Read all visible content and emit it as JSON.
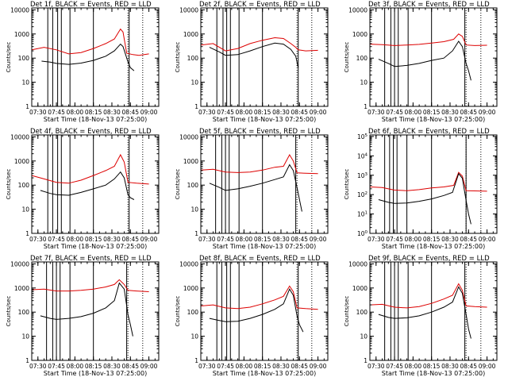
{
  "colors": {
    "events": "#000000",
    "lld": "#dd0000",
    "axes": "#000000",
    "background": "#ffffff"
  },
  "chart_data": [
    {
      "type": "line",
      "title": "Det 1f, BLACK = Events, RED = LLD",
      "xlabel": "Start Time (18-Nov-13 07:25:00)",
      "ylabel": "Counts/sec",
      "xlim": [
        "07:25",
        "09:08"
      ],
      "ylim": [
        1,
        12000
      ],
      "yscale": "log",
      "ytick_format": "plain",
      "x_ticks": [
        "07:30",
        "07:45",
        "08:00",
        "08:15",
        "08:30",
        "08:45",
        "09:00"
      ],
      "y_ticks": [
        "1",
        "10",
        "100",
        "1000",
        "10000"
      ],
      "marker_lines": [
        "07:38",
        "07:42",
        "07:46",
        "07:49",
        "07:56",
        "08:15",
        "08:44"
      ],
      "dotted_lines": [
        "08:43",
        "08:55"
      ],
      "series": [
        {
          "name": "LLD",
          "color": "#dd0000",
          "x": [
            "07:25",
            "07:35",
            "07:45",
            "07:55",
            "08:05",
            "08:15",
            "08:25",
            "08:32",
            "08:37",
            "08:39",
            "08:42",
            "08:47",
            "08:52",
            "09:00"
          ],
          "values": [
            220,
            280,
            220,
            150,
            170,
            250,
            400,
            620,
            1600,
            1200,
            160,
            140,
            130,
            150
          ]
        },
        {
          "name": "Events",
          "color": "#000000",
          "x": [
            "07:33",
            "07:40",
            "07:45",
            "07:55",
            "08:05",
            "08:15",
            "08:25",
            "08:32",
            "08:37",
            "08:39",
            "08:43",
            "08:45",
            "08:48"
          ],
          "values": [
            75,
            68,
            60,
            55,
            62,
            80,
            120,
            200,
            380,
            300,
            70,
            40,
            30
          ]
        }
      ]
    },
    {
      "type": "line",
      "title": "Det 2f, BLACK = Events, RED = LLD",
      "xlabel": "Start Time (18-Nov-13 07:25:00)",
      "ylabel": "Counts/sec",
      "xlim": [
        "07:25",
        "09:08"
      ],
      "ylim": [
        1,
        12000
      ],
      "yscale": "log",
      "ytick_format": "plain",
      "x_ticks": [
        "07:30",
        "07:45",
        "08:00",
        "08:15",
        "08:30",
        "08:45",
        "09:00"
      ],
      "y_ticks": [
        "1",
        "10",
        "100",
        "1000",
        "10000"
      ],
      "marker_lines": [
        "07:38",
        "07:43",
        "07:46",
        "07:49",
        "07:56",
        "08:15",
        "08:44"
      ],
      "dotted_lines": [
        "08:43",
        "08:55"
      ],
      "series": [
        {
          "name": "LLD",
          "color": "#dd0000",
          "x": [
            "07:25",
            "07:35",
            "07:45",
            "07:55",
            "08:05",
            "08:15",
            "08:25",
            "08:32",
            "08:38",
            "08:42",
            "08:44",
            "08:50",
            "09:00"
          ],
          "values": [
            350,
            400,
            200,
            250,
            400,
            550,
            700,
            650,
            400,
            280,
            220,
            200,
            210
          ]
        },
        {
          "name": "Events",
          "color": "#000000",
          "x": [
            "07:32",
            "07:40",
            "07:45",
            "07:55",
            "08:05",
            "08:15",
            "08:25",
            "08:32",
            "08:38",
            "08:42",
            "08:44"
          ],
          "values": [
            280,
            180,
            130,
            140,
            200,
            300,
            420,
            380,
            230,
            120,
            40
          ]
        }
      ]
    },
    {
      "type": "line",
      "title": "Det 3f, BLACK = Events, RED = LLD",
      "xlabel": "Start Time (18-Nov-13 07:25:00)",
      "ylabel": "Counts/sec",
      "xlim": [
        "07:25",
        "09:08"
      ],
      "ylim": [
        1,
        12000
      ],
      "yscale": "log",
      "ytick_format": "plain",
      "x_ticks": [
        "07:30",
        "07:45",
        "08:00",
        "08:15",
        "08:30",
        "08:45",
        "09:00"
      ],
      "y_ticks": [
        "1",
        "10",
        "100",
        "1000",
        "10000"
      ],
      "marker_lines": [
        "07:37",
        "07:42",
        "07:45",
        "07:48",
        "07:56",
        "08:15",
        "08:42"
      ],
      "dotted_lines": [
        "08:43",
        "08:55"
      ],
      "series": [
        {
          "name": "LLD",
          "color": "#dd0000",
          "x": [
            "07:25",
            "07:35",
            "07:45",
            "07:55",
            "08:05",
            "08:15",
            "08:25",
            "08:33",
            "08:37",
            "08:40",
            "08:43",
            "08:50",
            "09:00"
          ],
          "values": [
            380,
            360,
            330,
            350,
            370,
            420,
            480,
            600,
            1000,
            800,
            350,
            330,
            340
          ]
        },
        {
          "name": "Events",
          "color": "#000000",
          "x": [
            "07:32",
            "07:40",
            "07:45",
            "07:55",
            "08:05",
            "08:15",
            "08:25",
            "08:32",
            "08:37",
            "08:40",
            "08:43",
            "08:45",
            "08:47"
          ],
          "values": [
            90,
            60,
            45,
            50,
            60,
            80,
            100,
            200,
            500,
            300,
            60,
            30,
            12
          ]
        }
      ]
    },
    {
      "type": "line",
      "title": "Det 4f, BLACK = Events, RED = LLD",
      "xlabel": "Start Time (18-Nov-13 07:25:00)",
      "ylabel": "Counts/sec",
      "xlim": [
        "07:25",
        "09:08"
      ],
      "ylim": [
        1,
        12000
      ],
      "yscale": "log",
      "ytick_format": "plain",
      "x_ticks": [
        "07:30",
        "07:45",
        "08:00",
        "08:15",
        "08:30",
        "08:45",
        "09:00"
      ],
      "y_ticks": [
        "1",
        "10",
        "100",
        "1000",
        "10000"
      ],
      "marker_lines": [
        "07:38",
        "07:42",
        "07:46",
        "07:49",
        "07:56",
        "08:15",
        "08:44"
      ],
      "dotted_lines": [
        "08:43",
        "08:55"
      ],
      "series": [
        {
          "name": "LLD",
          "color": "#dd0000",
          "x": [
            "07:25",
            "07:35",
            "07:45",
            "07:55",
            "08:05",
            "08:15",
            "08:25",
            "08:32",
            "08:37",
            "08:40",
            "08:43",
            "08:50",
            "09:00"
          ],
          "values": [
            250,
            180,
            130,
            120,
            160,
            250,
            400,
            600,
            1800,
            900,
            130,
            120,
            110
          ]
        },
        {
          "name": "Events",
          "color": "#000000",
          "x": [
            "07:32",
            "07:40",
            "07:45",
            "07:55",
            "08:05",
            "08:15",
            "08:25",
            "08:32",
            "08:37",
            "08:40",
            "08:43",
            "08:45",
            "08:48"
          ],
          "values": [
            60,
            45,
            40,
            38,
            50,
            70,
            100,
            180,
            350,
            200,
            40,
            30,
            25
          ]
        }
      ]
    },
    {
      "type": "line",
      "title": "Det 5f, BLACK = Events, RED = LLD",
      "xlabel": "Start Time (18-Nov-13 07:25:00)",
      "ylabel": "Counts/sec",
      "xlim": [
        "07:25",
        "09:08"
      ],
      "ylim": [
        1,
        12000
      ],
      "yscale": "log",
      "ytick_format": "plain",
      "x_ticks": [
        "07:30",
        "07:45",
        "08:00",
        "08:15",
        "08:30",
        "08:45",
        "09:00"
      ],
      "y_ticks": [
        "1",
        "10",
        "100",
        "1000",
        "10000"
      ],
      "marker_lines": [
        "07:37",
        "07:42",
        "07:45",
        "07:48",
        "07:56",
        "08:15",
        "08:42"
      ],
      "dotted_lines": [
        "08:43",
        "08:55"
      ],
      "series": [
        {
          "name": "LLD",
          "color": "#dd0000",
          "x": [
            "07:25",
            "07:35",
            "07:45",
            "07:55",
            "08:05",
            "08:15",
            "08:25",
            "08:32",
            "08:37",
            "08:40",
            "08:43",
            "08:50",
            "09:00"
          ],
          "values": [
            420,
            450,
            350,
            330,
            350,
            420,
            550,
            600,
            1800,
            1000,
            320,
            310,
            300
          ]
        },
        {
          "name": "Events",
          "color": "#000000",
          "x": [
            "07:32",
            "07:40",
            "07:45",
            "07:55",
            "08:05",
            "08:15",
            "08:25",
            "08:32",
            "08:37",
            "08:40",
            "08:43",
            "08:45",
            "08:47"
          ],
          "values": [
            120,
            80,
            60,
            70,
            90,
            120,
            170,
            220,
            700,
            400,
            80,
            25,
            8
          ]
        }
      ]
    },
    {
      "type": "line",
      "title": "Det 6f, BLACK = Events, RED = LLD",
      "xlabel": "Start Time (18-Nov-13 07:25:00)",
      "ylabel": "Counts/sec",
      "xlim": [
        "07:25",
        "09:08"
      ],
      "ylim": [
        1,
        120000
      ],
      "yscale": "log",
      "ytick_format": "power",
      "x_ticks": [
        "07:30",
        "07:45",
        "08:00",
        "08:15",
        "08:30",
        "08:45",
        "09:00"
      ],
      "y_ticks": [
        "10^0",
        "10^1",
        "10^2",
        "10^3",
        "10^4",
        "10^5"
      ],
      "marker_lines": [
        "07:37",
        "07:41",
        "07:44",
        "07:47",
        "07:55",
        "08:15",
        "08:43"
      ],
      "dotted_lines": [
        "08:43",
        "08:55"
      ],
      "series": [
        {
          "name": "LLD",
          "color": "#dd0000",
          "x": [
            "07:25",
            "07:35",
            "07:45",
            "07:55",
            "08:05",
            "08:15",
            "08:25",
            "08:33",
            "08:37",
            "08:40",
            "08:43",
            "08:50",
            "09:00"
          ],
          "values": [
            250,
            230,
            170,
            160,
            180,
            220,
            250,
            300,
            1400,
            900,
            160,
            155,
            150
          ]
        },
        {
          "name": "Events",
          "color": "#000000",
          "x": [
            "07:32",
            "07:40",
            "07:45",
            "07:55",
            "08:05",
            "08:15",
            "08:25",
            "08:32",
            "08:37",
            "08:40",
            "08:43",
            "08:45",
            "08:47"
          ],
          "values": [
            55,
            40,
            35,
            37,
            45,
            60,
            90,
            130,
            1200,
            700,
            50,
            10,
            3
          ]
        }
      ]
    },
    {
      "type": "line",
      "title": "Det 7f, BLACK = Events, RED = LLD",
      "xlabel": "Start Time (18-Nov-13 07:25:00)",
      "ylabel": "Counts/sec",
      "xlim": [
        "07:25",
        "09:08"
      ],
      "ylim": [
        1,
        12000
      ],
      "yscale": "log",
      "ytick_format": "plain",
      "x_ticks": [
        "07:30",
        "07:45",
        "08:00",
        "08:15",
        "08:30",
        "08:45",
        "09:00"
      ],
      "y_ticks": [
        "1",
        "10",
        "100",
        "1000",
        "10000"
      ],
      "marker_lines": [
        "07:37",
        "07:42",
        "07:45",
        "07:48",
        "07:56",
        "08:15",
        "08:42"
      ],
      "dotted_lines": [
        "08:43",
        "08:55"
      ],
      "series": [
        {
          "name": "LLD",
          "color": "#dd0000",
          "x": [
            "07:25",
            "07:35",
            "07:45",
            "07:55",
            "08:05",
            "08:15",
            "08:25",
            "08:32",
            "08:36",
            "08:40",
            "08:43",
            "08:50",
            "09:00"
          ],
          "values": [
            850,
            900,
            750,
            750,
            800,
            900,
            1100,
            1400,
            2200,
            1400,
            800,
            750,
            700
          ]
        },
        {
          "name": "Events",
          "color": "#000000",
          "x": [
            "07:32",
            "07:40",
            "07:45",
            "07:55",
            "08:05",
            "08:15",
            "08:25",
            "08:32",
            "08:36",
            "08:40",
            "08:43",
            "08:45",
            "08:47"
          ],
          "values": [
            70,
            55,
            50,
            55,
            65,
            90,
            150,
            300,
            1600,
            900,
            80,
            30,
            10
          ]
        }
      ]
    },
    {
      "type": "line",
      "title": "Det 8f, BLACK = Events, RED = LLD",
      "xlabel": "Start Time (18-Nov-13 07:25:00)",
      "ylabel": "Counts/sec",
      "xlim": [
        "07:25",
        "09:08"
      ],
      "ylim": [
        1,
        12000
      ],
      "yscale": "log",
      "ytick_format": "plain",
      "x_ticks": [
        "07:30",
        "07:45",
        "08:00",
        "08:15",
        "08:30",
        "08:45",
        "09:00"
      ],
      "y_ticks": [
        "1",
        "10",
        "100",
        "1000",
        "10000"
      ],
      "marker_lines": [
        "07:38",
        "07:42",
        "07:46",
        "07:49",
        "07:56",
        "08:15",
        "08:44"
      ],
      "dotted_lines": [
        "08:43",
        "08:55"
      ],
      "series": [
        {
          "name": "LLD",
          "color": "#dd0000",
          "x": [
            "07:25",
            "07:35",
            "07:45",
            "07:55",
            "08:05",
            "08:15",
            "08:25",
            "08:32",
            "08:37",
            "08:40",
            "08:43",
            "08:50",
            "09:00"
          ],
          "values": [
            180,
            200,
            150,
            140,
            160,
            220,
            320,
            450,
            1200,
            700,
            150,
            140,
            130
          ]
        },
        {
          "name": "Events",
          "color": "#000000",
          "x": [
            "07:32",
            "07:40",
            "07:45",
            "07:55",
            "08:05",
            "08:15",
            "08:25",
            "08:32",
            "08:37",
            "08:40",
            "08:43",
            "08:45",
            "08:48"
          ],
          "values": [
            55,
            45,
            40,
            42,
            55,
            80,
            130,
            220,
            900,
            500,
            70,
            30,
            15
          ]
        }
      ]
    },
    {
      "type": "line",
      "title": "Det 9f, BLACK = Events, RED = LLD",
      "xlabel": "Start Time (18-Nov-13 07:25:00)",
      "ylabel": "Counts/sec",
      "xlim": [
        "07:25",
        "09:08"
      ],
      "ylim": [
        1,
        12000
      ],
      "yscale": "log",
      "ytick_format": "plain",
      "x_ticks": [
        "07:30",
        "07:45",
        "08:00",
        "08:15",
        "08:30",
        "08:45",
        "09:00"
      ],
      "y_ticks": [
        "1",
        "10",
        "100",
        "1000",
        "10000"
      ],
      "marker_lines": [
        "07:37",
        "07:42",
        "07:45",
        "07:48",
        "07:56",
        "08:15",
        "08:42"
      ],
      "dotted_lines": [
        "08:43",
        "08:55"
      ],
      "series": [
        {
          "name": "LLD",
          "color": "#dd0000",
          "x": [
            "07:25",
            "07:35",
            "07:45",
            "07:55",
            "08:05",
            "08:15",
            "08:25",
            "08:32",
            "08:37",
            "08:40",
            "08:43",
            "08:50",
            "09:00"
          ],
          "values": [
            200,
            210,
            160,
            150,
            170,
            230,
            350,
            500,
            1500,
            800,
            180,
            170,
            160
          ]
        },
        {
          "name": "Events",
          "color": "#000000",
          "x": [
            "07:32",
            "07:40",
            "07:45",
            "07:55",
            "08:05",
            "08:15",
            "08:25",
            "08:32",
            "08:37",
            "08:40",
            "08:43",
            "08:45",
            "08:47"
          ],
          "values": [
            80,
            60,
            55,
            58,
            70,
            100,
            160,
            260,
            1100,
            600,
            80,
            20,
            8
          ]
        }
      ]
    }
  ]
}
